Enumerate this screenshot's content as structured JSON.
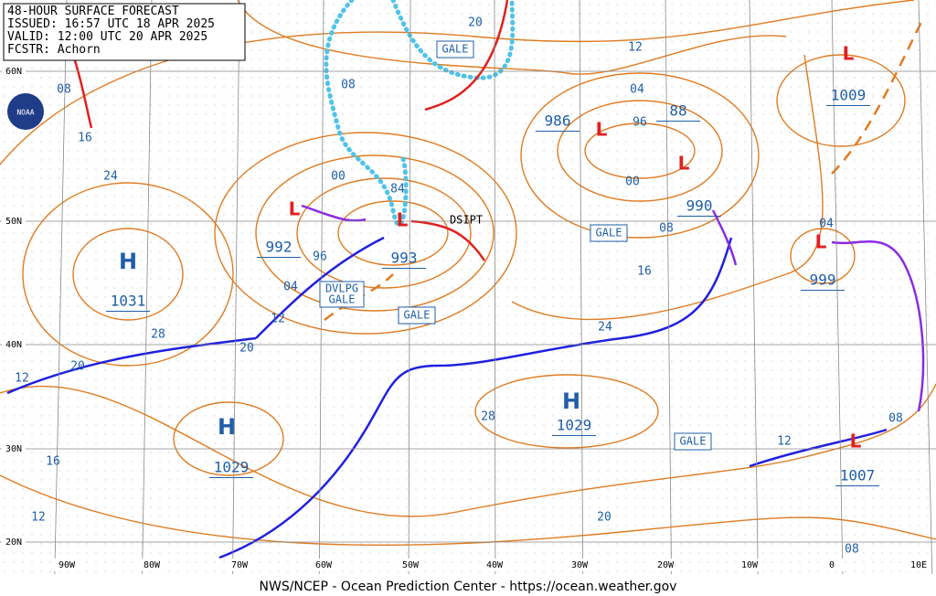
{
  "header": {
    "lines": [
      "48-HOUR SURFACE FORECAST",
      "ISSUED: 16:57 UTC 18 APR 2025",
      "VALID: 12:00 UTC 20 APR 2025",
      "FCSTR:  Achorn"
    ]
  },
  "logo": "NOAA",
  "footer": "NWS/NCEP - Ocean Prediction Center - https://ocean.weather.gov",
  "latitude_labels": [
    "60N",
    "50N",
    "40N",
    "30N",
    "20N"
  ],
  "longitude_labels": [
    "90W",
    "80W",
    "70W",
    "60W",
    "50W",
    "40W",
    "30W",
    "20W",
    "10W",
    "0",
    "10E"
  ],
  "centers": [
    {
      "symbol": "H",
      "pressure": "1031"
    },
    {
      "symbol": "H",
      "pressure": "1029"
    },
    {
      "symbol": "H",
      "pressure": "1029"
    },
    {
      "symbol": "L",
      "pressure": "992"
    },
    {
      "symbol": "L",
      "pressure": "993"
    },
    {
      "symbol": "L",
      "pressure": "986"
    },
    {
      "symbol": "L",
      "pressure": "88"
    },
    {
      "symbol": "L",
      "pressure": "990"
    },
    {
      "symbol": "L",
      "pressure": "1009"
    },
    {
      "symbol": "L",
      "pressure": "999"
    },
    {
      "symbol": "L",
      "pressure": "1007"
    }
  ],
  "isobar_labels": [
    "08",
    "16",
    "24",
    "28",
    "20",
    "12",
    "16",
    "12",
    "12",
    "20",
    "04",
    "96",
    "00",
    "08",
    "84",
    "20",
    "12",
    "04",
    "96",
    "00",
    "08",
    "16",
    "24",
    "28",
    "20",
    "12",
    "08",
    "08",
    "04"
  ],
  "warnings": [
    "GALE",
    "GALE",
    "GALE",
    "GALE"
  ],
  "developing_warning": [
    "DVLPG",
    "GALE"
  ],
  "annotations": [
    "DSIPT"
  ]
}
